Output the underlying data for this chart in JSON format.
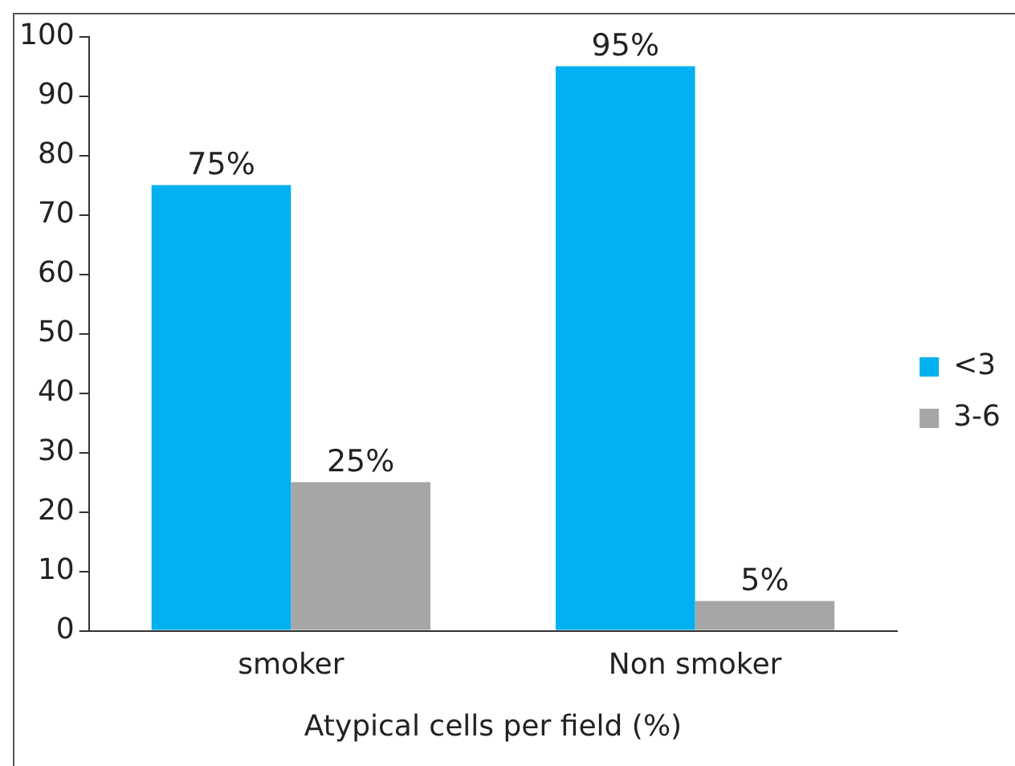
{
  "chart_data": {
    "type": "bar",
    "xlabel": "Atypical cells per field (%)",
    "categories": [
      "smoker",
      "Non smoker"
    ],
    "series": [
      {
        "name": "<3",
        "color": "#00b0f0",
        "values": [
          75,
          95
        ],
        "value_labels": [
          "75%",
          "95%"
        ]
      },
      {
        "name": "3-6",
        "color": "#a6a6a6",
        "values": [
          25,
          5
        ],
        "value_labels": [
          "25%",
          "5%"
        ]
      }
    ],
    "ylim": [
      0,
      100
    ],
    "yticks": [
      0,
      10,
      20,
      30,
      40,
      50,
      60,
      70,
      80,
      90,
      100
    ],
    "grid": false,
    "legend": "right"
  }
}
